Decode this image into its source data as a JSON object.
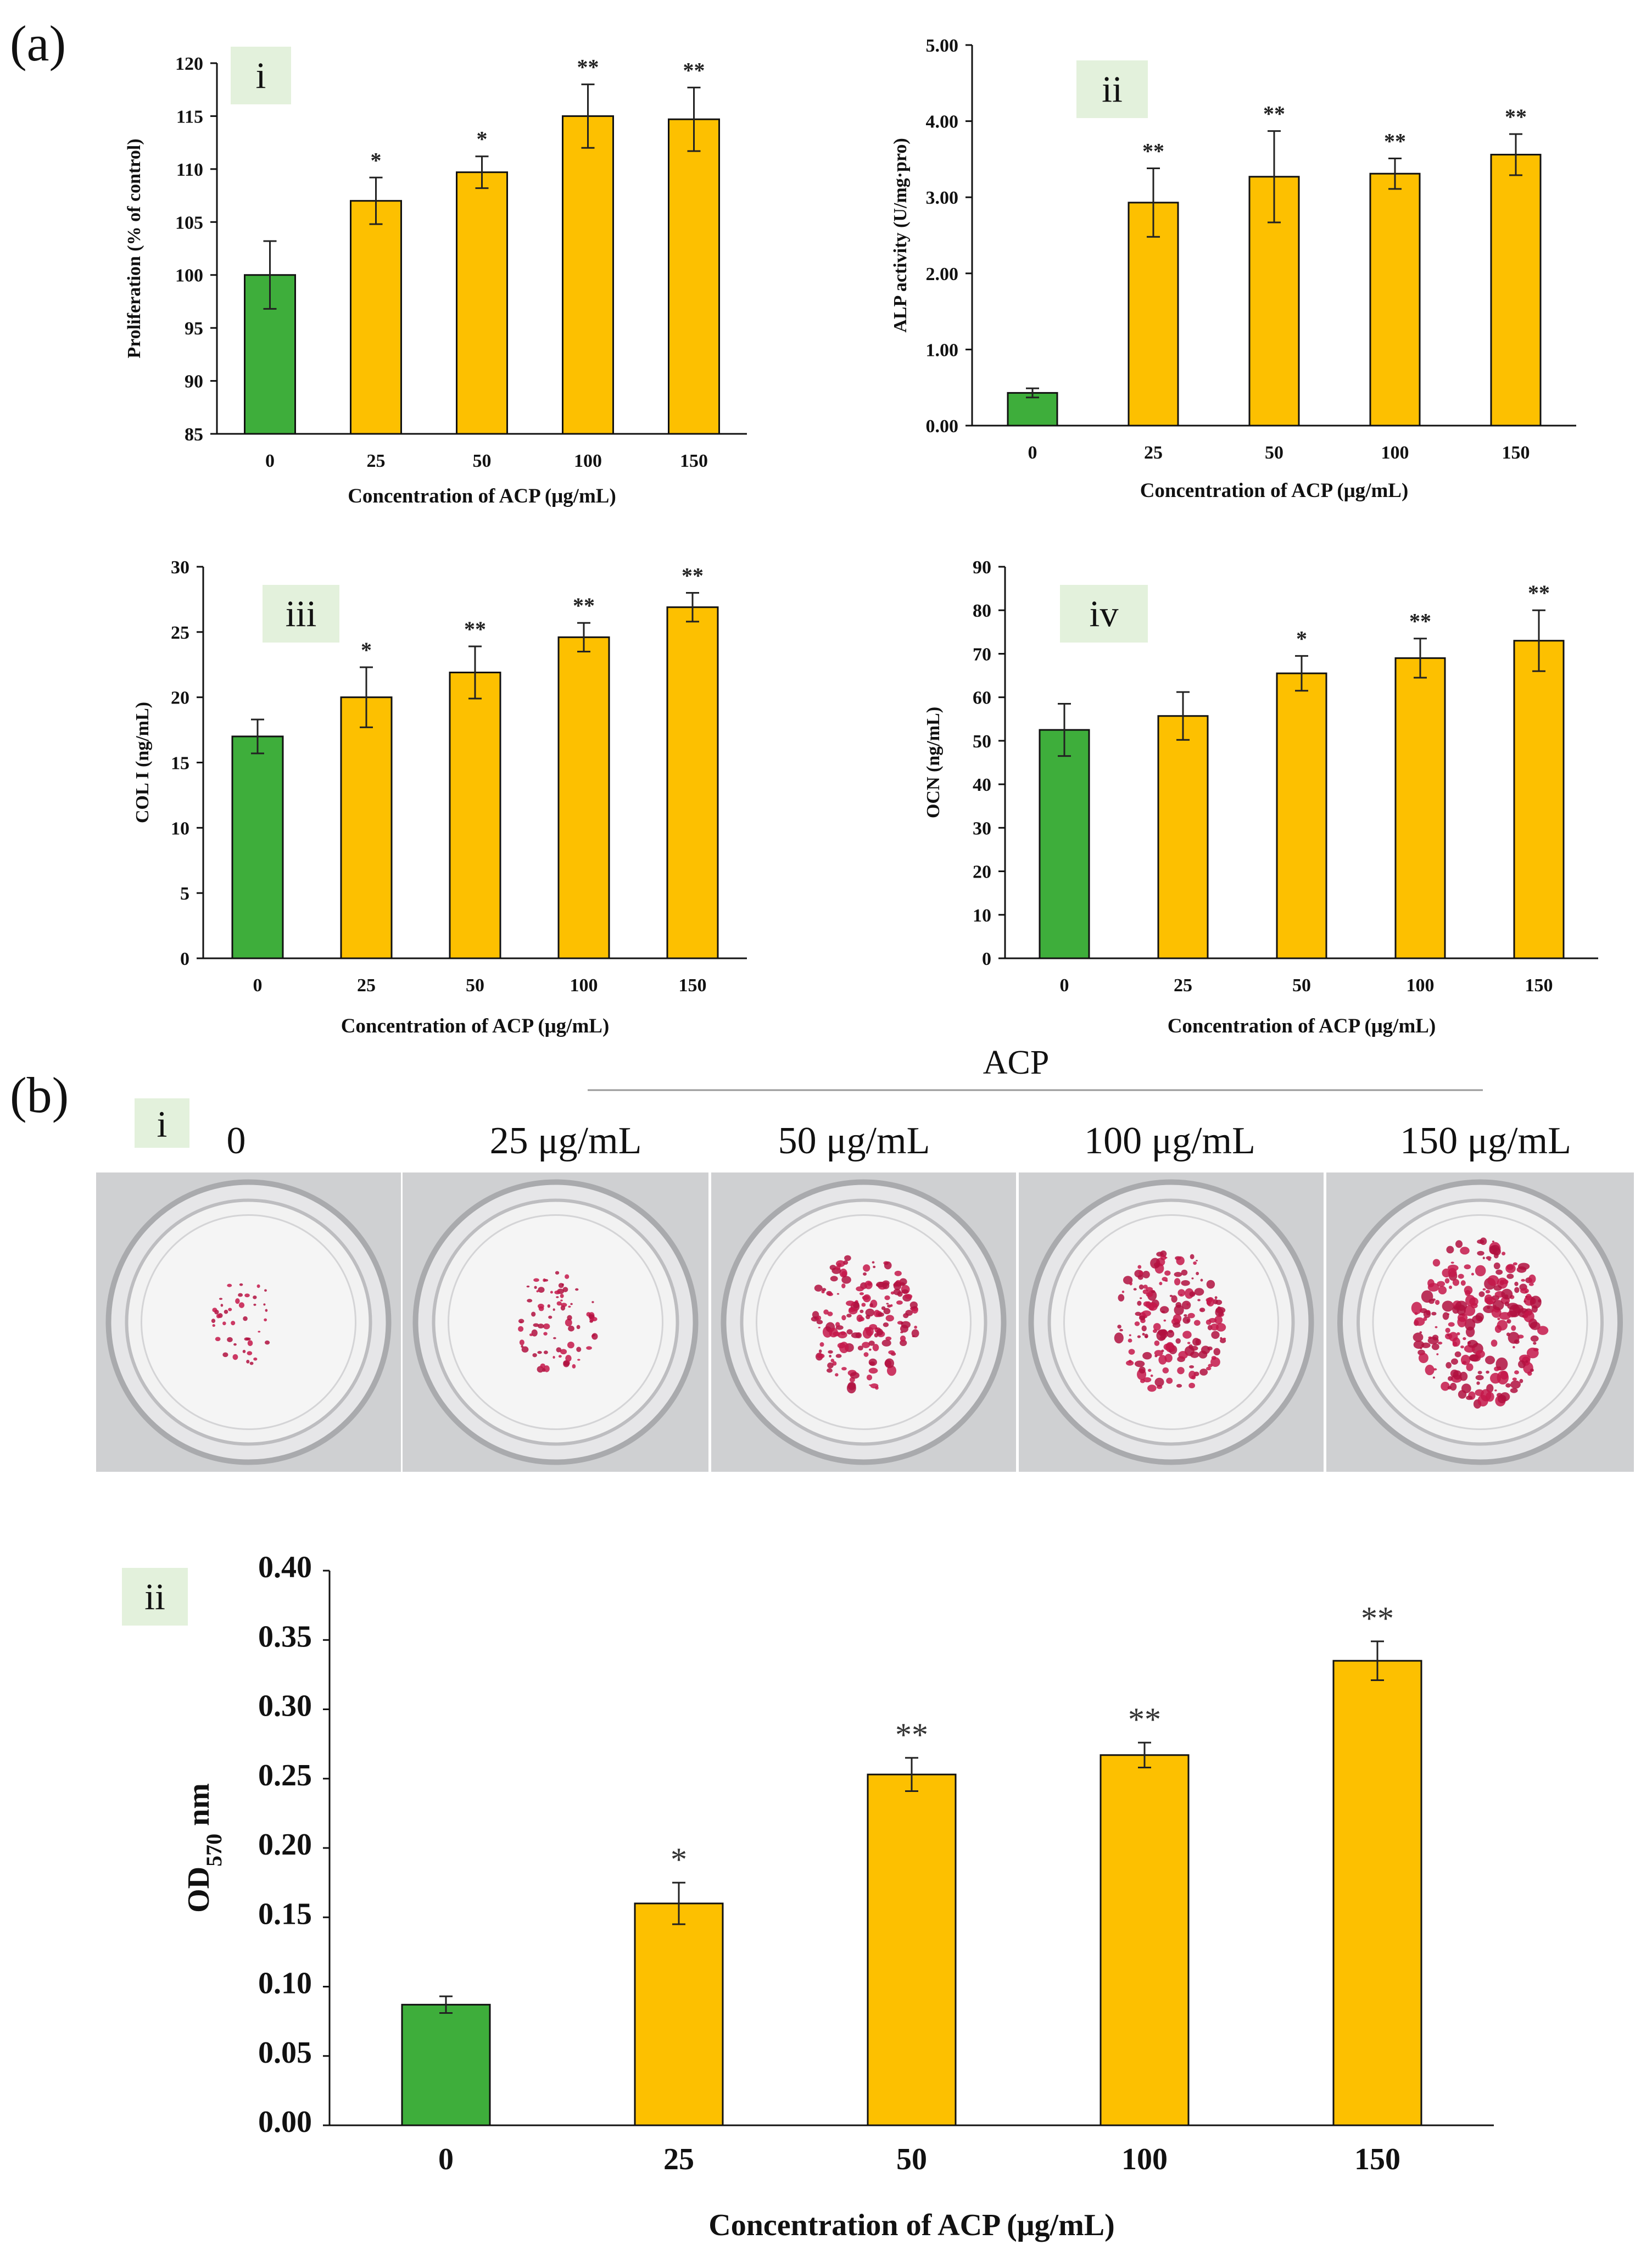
{
  "panel_labels": {
    "a": "(a)",
    "b": "(b)"
  },
  "acp_group_label": "ACP",
  "colors": {
    "control": "#3eae3b",
    "treated": "#fdc000",
    "tag_bg": "#e3f1dc",
    "error": "#222222"
  },
  "chart_data": [
    {
      "type": "bar",
      "tag": "i",
      "categories": [
        "0",
        "25",
        "50",
        "100",
        "150"
      ],
      "values": [
        100,
        107,
        109.7,
        115,
        114.7
      ],
      "errors": [
        3.2,
        2.2,
        1.5,
        3.0,
        3.0
      ],
      "significance": [
        "",
        "*",
        "*",
        "**",
        "**"
      ],
      "ylim": [
        85,
        120
      ],
      "yticks": [
        "85",
        "90",
        "95",
        "100",
        "105",
        "110",
        "115",
        "120"
      ],
      "xlabel": "Concentration of ACP (μg/mL)",
      "ylabel": "Proliferation (% of control)"
    },
    {
      "type": "bar",
      "tag": "ii",
      "categories": [
        "0",
        "25",
        "50",
        "100",
        "150"
      ],
      "values": [
        0.43,
        2.93,
        3.27,
        3.31,
        3.56
      ],
      "errors": [
        0.06,
        0.45,
        0.6,
        0.2,
        0.27
      ],
      "significance": [
        "",
        "**",
        "**",
        "**",
        "**"
      ],
      "ylim": [
        0,
        5
      ],
      "yticks": [
        "0.00",
        "1.00",
        "2.00",
        "3.00",
        "4.00",
        "5.00"
      ],
      "xlabel": "Concentration of ACP (μg/mL)",
      "ylabel": "ALP activity (U/mg·pro)"
    },
    {
      "type": "bar",
      "tag": "iii",
      "categories": [
        "0",
        "25",
        "50",
        "100",
        "150"
      ],
      "values": [
        17,
        20,
        21.9,
        24.6,
        26.9
      ],
      "errors": [
        1.3,
        2.3,
        2.0,
        1.1,
        1.1
      ],
      "significance": [
        "",
        "*",
        "**",
        "**",
        "**"
      ],
      "ylim": [
        0,
        30
      ],
      "yticks": [
        "0",
        "5",
        "10",
        "15",
        "20",
        "25",
        "30"
      ],
      "xlabel": "Concentration of ACP (μg/mL)",
      "ylabel": "COL I (ng/mL)"
    },
    {
      "type": "bar",
      "tag": "iv",
      "categories": [
        "0",
        "25",
        "50",
        "100",
        "150"
      ],
      "values": [
        52.5,
        55.7,
        65.5,
        69,
        73
      ],
      "errors": [
        6,
        5.5,
        4,
        4.5,
        7
      ],
      "significance": [
        "",
        "",
        "*",
        "**",
        "**"
      ],
      "ylim": [
        0,
        90
      ],
      "yticks": [
        "0",
        "10",
        "20",
        "30",
        "40",
        "50",
        "60",
        "70",
        "80",
        "90"
      ],
      "xlabel": "Concentration of ACP (μg/mL)",
      "ylabel": "OCN (ng/mL)"
    },
    {
      "type": "bar",
      "tag": "ii",
      "categories": [
        "0",
        "25",
        "50",
        "100",
        "150"
      ],
      "values": [
        0.087,
        0.16,
        0.253,
        0.267,
        0.335
      ],
      "errors": [
        0.006,
        0.015,
        0.012,
        0.009,
        0.014
      ],
      "significance": [
        "",
        "*",
        "**",
        "**",
        "**"
      ],
      "ylim": [
        0,
        0.4
      ],
      "yticks": [
        "0.00",
        "0.05",
        "0.10",
        "0.15",
        "0.20",
        "0.25",
        "0.30",
        "0.35",
        "0.40"
      ],
      "xlabel": "Concentration of ACP (μg/mL)",
      "ylabel_main": "OD",
      "ylabel_sub": "570",
      "ylabel_unit": " nm"
    }
  ],
  "wells": {
    "tag": "i",
    "labels": [
      "0",
      "25 μg/mL",
      "50 μg/mL",
      "100 μg/mL",
      "150 μg/mL"
    ],
    "stain_levels": [
      0.08,
      0.22,
      0.55,
      0.6,
      0.85
    ]
  }
}
